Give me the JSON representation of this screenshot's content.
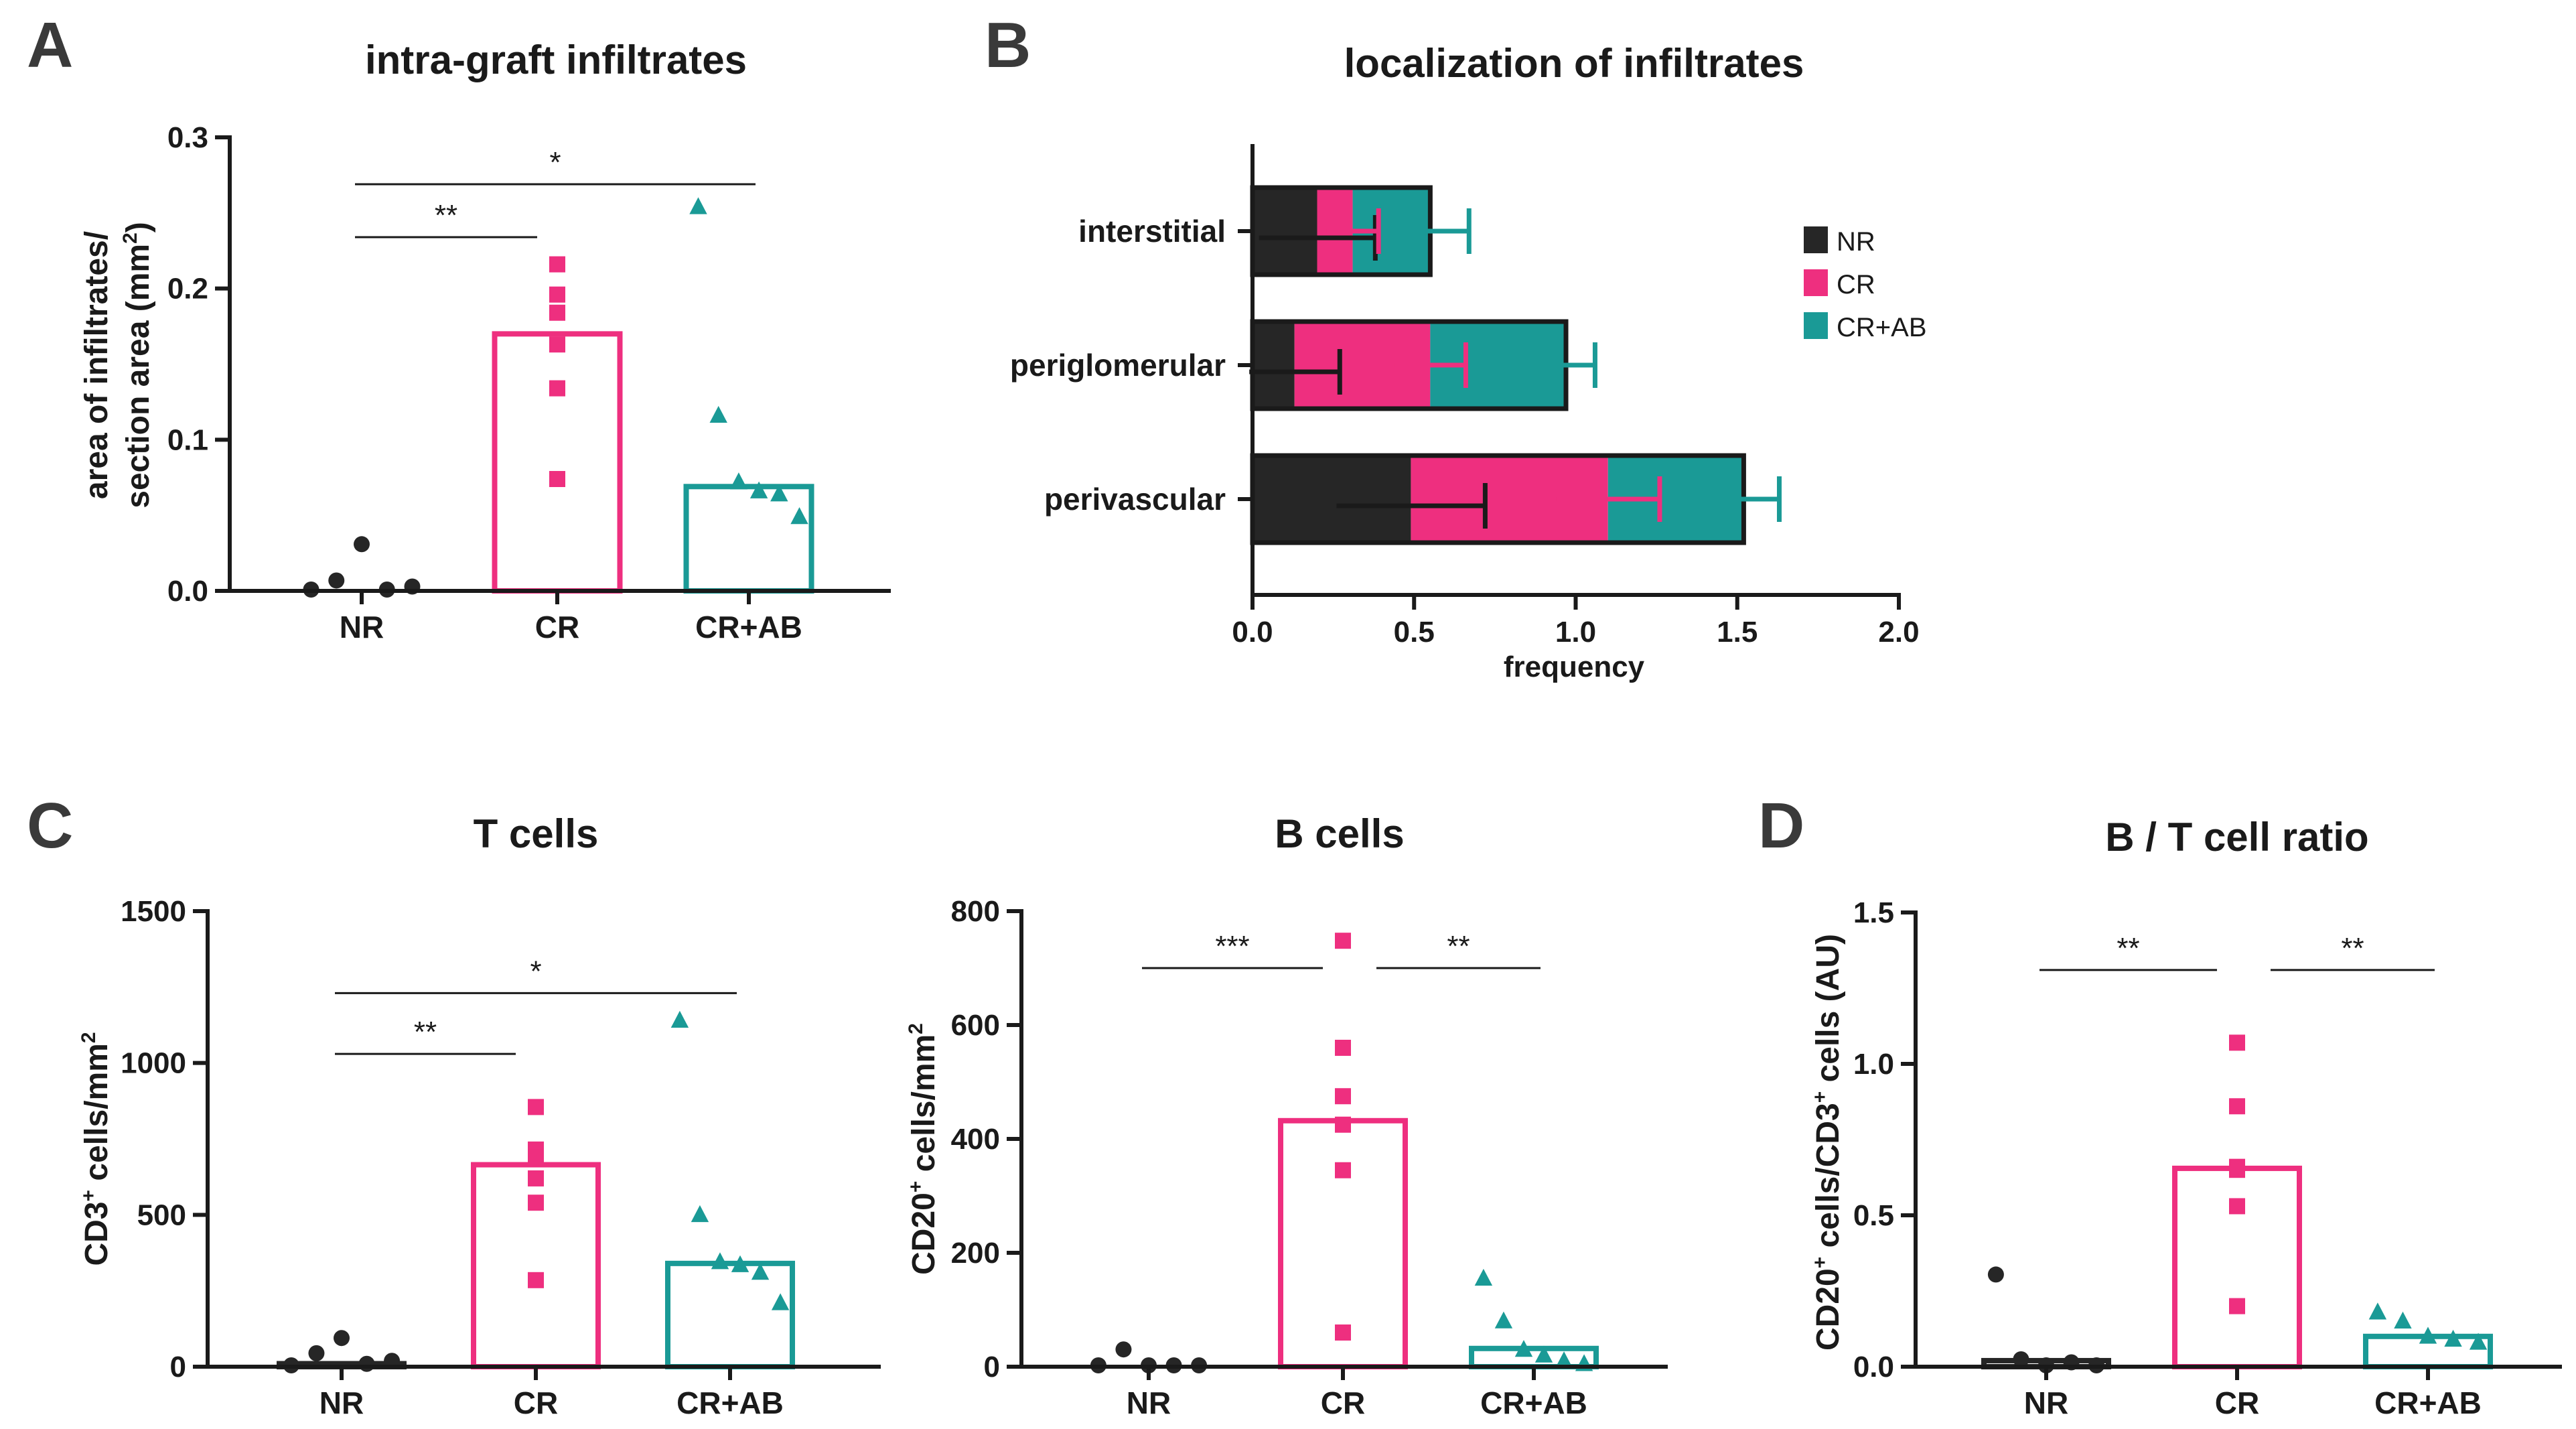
{
  "colors": {
    "NR": "#262626",
    "CR": "#ee2f7f",
    "CRAB": "#1a9a96",
    "axis": "#1a1a1a"
  },
  "chart_data": [
    {
      "id": "A",
      "panel_letter": "A",
      "type": "bar",
      "title": "intra-graft infiltrates",
      "ylabel_lines": [
        "area of infiltrates/",
        "section area (mm",
        "2",
        ")"
      ],
      "categories": [
        "NR",
        "CR",
        "CR+AB"
      ],
      "ylim": [
        0,
        0.3
      ],
      "yticks": [
        0,
        0.1,
        0.2,
        0.3
      ],
      "ytick_labels": [
        "0.0",
        "0.1",
        "0.2",
        "0.3"
      ],
      "bars": [
        0.0,
        0.17,
        0.069
      ],
      "points": [
        [
          0.0,
          0.006,
          0.03,
          0.0,
          0.002
        ],
        [
          0.216,
          0.196,
          0.184,
          0.163,
          0.134,
          0.074
        ],
        [
          0.254,
          0.116,
          0.072,
          0.066,
          0.064,
          0.049
        ]
      ],
      "markers": [
        "circle",
        "square",
        "triangle"
      ],
      "significance": [
        {
          "from": 0,
          "to": 1,
          "label": "**",
          "y": 0.234
        },
        {
          "from": 0,
          "to": 2,
          "label": "*",
          "y": 0.269
        }
      ]
    },
    {
      "id": "B",
      "panel_letter": "B",
      "type": "bar",
      "orientation": "horizontal-stacked",
      "title": "localization of infiltrates",
      "xlabel": "frequency",
      "categories": [
        "interstitial",
        "periglomerular",
        "perivascular"
      ],
      "xlim": [
        0,
        2.0
      ],
      "xticks": [
        0,
        0.5,
        1.0,
        1.5,
        2.0
      ],
      "xtick_labels": [
        "0.0",
        "0.5",
        "1.0",
        "1.5",
        "2.0"
      ],
      "series": [
        {
          "name": "NR",
          "values": [
            0.2,
            0.13,
            0.49
          ],
          "errors": [
            0.18,
            0.14,
            0.23
          ]
        },
        {
          "name": "CR",
          "values": [
            0.11,
            0.42,
            0.61
          ],
          "errors": [
            0.08,
            0.11,
            0.16
          ]
        },
        {
          "name": "CR+AB",
          "values": [
            0.24,
            0.42,
            0.42
          ],
          "errors": [
            0.12,
            0.09,
            0.11
          ]
        }
      ],
      "legend": [
        "NR",
        "CR",
        "CR+AB"
      ]
    },
    {
      "id": "C1",
      "panel_letter": "C",
      "type": "bar",
      "title": "T cells",
      "ylabel_lines": [
        "CD3",
        "+",
        " cells/mm",
        "2"
      ],
      "categories": [
        "NR",
        "CR",
        "CR+AB"
      ],
      "ylim": [
        0,
        1500
      ],
      "yticks": [
        0,
        500,
        1000,
        1500
      ],
      "ytick_labels": [
        "0",
        "500",
        "1000",
        "1500"
      ],
      "bars": [
        10,
        665,
        340
      ],
      "points": [
        [
          0,
          40,
          90,
          5,
          15
        ],
        [
          855,
          715,
          690,
          620,
          540,
          285
        ],
        [
          1140,
          500,
          345,
          335,
          310,
          210
        ]
      ],
      "markers": [
        "circle",
        "square",
        "triangle"
      ],
      "significance": [
        {
          "from": 0,
          "to": 1,
          "label": "**",
          "y": 1030
        },
        {
          "from": 0,
          "to": 2,
          "label": "*",
          "y": 1230
        }
      ]
    },
    {
      "id": "C2",
      "panel_letter": "",
      "type": "bar",
      "title": "B cells",
      "ylabel_lines": [
        "CD20",
        "+",
        " cells/mm",
        "2"
      ],
      "categories": [
        "NR",
        "CR",
        "CR+AB"
      ],
      "ylim": [
        0,
        800
      ],
      "yticks": [
        0,
        200,
        400,
        600,
        800
      ],
      "ytick_labels": [
        "0",
        "200",
        "400",
        "600",
        "800"
      ],
      "bars": [
        0,
        432,
        32
      ],
      "points": [
        [
          0,
          28,
          0,
          0,
          0
        ],
        [
          748,
          560,
          475,
          425,
          345,
          60
        ],
        [
          155,
          80,
          30,
          20,
          10,
          5
        ]
      ],
      "markers": [
        "circle",
        "square",
        "triangle"
      ],
      "significance": [
        {
          "from": 0,
          "to": 1,
          "label": "***",
          "y": 700
        },
        {
          "from": 1,
          "to": 2,
          "label": "**",
          "y": 700
        }
      ]
    },
    {
      "id": "D",
      "panel_letter": "D",
      "type": "bar",
      "title": "B / T cell ratio",
      "ylabel_lines": [
        "CD20",
        "+",
        " cells/CD3",
        "+",
        " cells (AU)"
      ],
      "categories": [
        "NR",
        "CR",
        "CR+AB"
      ],
      "ylim": [
        0,
        1.5
      ],
      "yticks": [
        0,
        0.5,
        1.0,
        1.5
      ],
      "ytick_labels": [
        "0.0",
        "0.5",
        "1.0",
        "1.5"
      ],
      "bars": [
        0.02,
        0.655,
        0.1
      ],
      "points": [
        [
          0.3,
          0.02,
          0.0,
          0.01,
          0.0
        ],
        [
          1.07,
          0.86,
          0.66,
          0.65,
          0.53,
          0.2
        ],
        [
          0.18,
          0.15,
          0.1,
          0.09,
          0.08
        ]
      ],
      "markers": [
        "circle",
        "square",
        "triangle"
      ],
      "significance": [
        {
          "from": 0,
          "to": 1,
          "label": "**",
          "y": 1.31
        },
        {
          "from": 1,
          "to": 2,
          "label": "**",
          "y": 1.31
        }
      ]
    }
  ]
}
